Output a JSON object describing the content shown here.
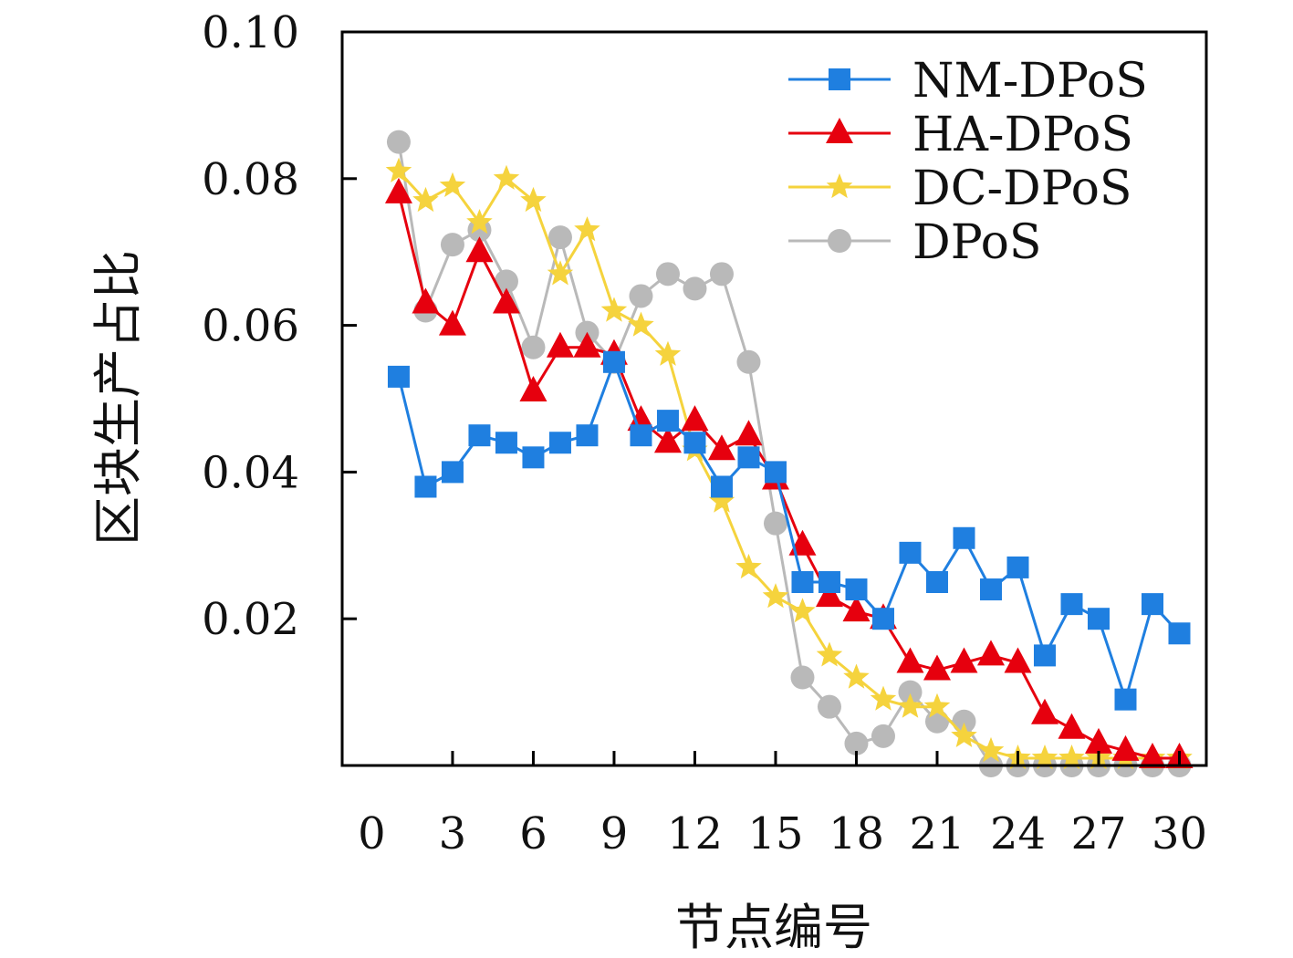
{
  "chart_data": {
    "type": "line",
    "title": "",
    "xlabel": "节点编号",
    "ylabel": "区块生产占比",
    "x": [
      1,
      2,
      3,
      4,
      5,
      6,
      7,
      8,
      9,
      10,
      11,
      12,
      13,
      14,
      15,
      16,
      17,
      18,
      19,
      20,
      21,
      22,
      23,
      24,
      25,
      26,
      27,
      28,
      29,
      30
    ],
    "xticks": [
      "0",
      "3",
      "6",
      "9",
      "12",
      "15",
      "18",
      "21",
      "24",
      "27",
      "30"
    ],
    "yticks": [
      "0.02",
      "0.04",
      "0.06",
      "0.08",
      "0.10"
    ],
    "xlim": [
      -1.1,
      31.0
    ],
    "ylim": [
      0.0,
      0.1
    ],
    "grid": false,
    "legend_position": "top-right",
    "series": [
      {
        "name": "NM-DPoS",
        "color": "#1f7fe0",
        "marker": "square",
        "values": [
          0.053,
          0.038,
          0.04,
          0.045,
          0.044,
          0.042,
          0.044,
          0.045,
          0.055,
          0.045,
          0.047,
          0.044,
          0.038,
          0.042,
          0.04,
          0.025,
          0.025,
          0.024,
          0.02,
          0.029,
          0.025,
          0.031,
          0.024,
          0.027,
          0.015,
          0.022,
          0.02,
          0.009,
          0.022,
          0.018
        ]
      },
      {
        "name": "HA-DPoS",
        "color": "#e6000e",
        "marker": "triangle",
        "values": [
          0.078,
          0.063,
          0.06,
          0.07,
          0.063,
          0.051,
          0.057,
          0.057,
          0.056,
          0.047,
          0.044,
          0.047,
          0.043,
          0.045,
          0.039,
          0.03,
          0.023,
          0.021,
          0.02,
          0.014,
          0.013,
          0.014,
          0.015,
          0.014,
          0.007,
          0.005,
          0.003,
          0.002,
          0.001,
          0.001
        ]
      },
      {
        "name": "DC-DPoS",
        "color": "#f5d33d",
        "marker": "star",
        "values": [
          0.081,
          0.077,
          0.079,
          0.074,
          0.08,
          0.077,
          0.067,
          0.073,
          0.062,
          0.06,
          0.056,
          0.043,
          0.036,
          0.027,
          0.023,
          0.021,
          0.015,
          0.012,
          0.009,
          0.008,
          0.008,
          0.004,
          0.002,
          0.001,
          0.001,
          0.001,
          0.001,
          0.001,
          0.001,
          0.001
        ]
      },
      {
        "name": "DPoS",
        "color": "#b9b9b9",
        "marker": "circle",
        "values": [
          0.085,
          0.062,
          0.071,
          0.073,
          0.066,
          0.057,
          0.072,
          0.059,
          0.055,
          0.064,
          0.067,
          0.065,
          0.067,
          0.055,
          0.033,
          0.012,
          0.008,
          0.003,
          0.004,
          0.01,
          0.006,
          0.006,
          0.0,
          0.0,
          0.0,
          0.0,
          0.0,
          0.0,
          0.0,
          0.0
        ]
      }
    ]
  }
}
